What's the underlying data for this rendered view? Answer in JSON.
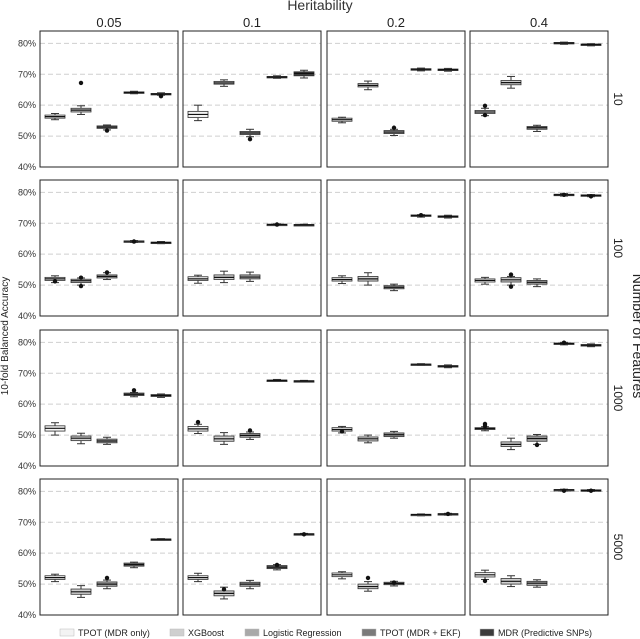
{
  "chart_data": {
    "type": "box",
    "title": "Heritability",
    "ylabel": "10-fold Balanced Accuracy",
    "row_axis_label": "Number of Features",
    "columns": [
      "0.05",
      "0.1",
      "0.2",
      "0.4"
    ],
    "rows": [
      "10",
      "100",
      "1000",
      "5000"
    ],
    "yticks": [
      "40%",
      "50%",
      "60%",
      "70%",
      "80%"
    ],
    "ylim": [
      0.4,
      0.84
    ],
    "grid": "horizontal dashed",
    "legend_position": "bottom",
    "methods": [
      {
        "name": "TPOT (MDR only)",
        "color": "#f3f3f3"
      },
      {
        "name": "XGBoost",
        "color": "#cfcfcf"
      },
      {
        "name": "Logistic Regression",
        "color": "#a9a9a9"
      },
      {
        "name": "TPOT (MDR + EKF)",
        "color": "#7a7a7a"
      },
      {
        "name": "MDR (Predictive SNPs)",
        "color": "#3c3c3c"
      }
    ],
    "panels": [
      {
        "row": "10",
        "col": "0.05",
        "boxes": [
          {
            "q1": 0.558,
            "med": 0.563,
            "q3": 0.568,
            "lo": 0.553,
            "hi": 0.573,
            "out": []
          },
          {
            "q1": 0.578,
            "med": 0.584,
            "q3": 0.59,
            "lo": 0.57,
            "hi": 0.598,
            "out": [
              0.672
            ]
          },
          {
            "q1": 0.525,
            "med": 0.529,
            "q3": 0.533,
            "lo": 0.52,
            "hi": 0.536,
            "out": [
              0.518
            ]
          },
          {
            "q1": 0.639,
            "med": 0.641,
            "q3": 0.643,
            "lo": 0.637,
            "hi": 0.645,
            "out": []
          },
          {
            "q1": 0.634,
            "med": 0.636,
            "q3": 0.638,
            "lo": 0.632,
            "hi": 0.64,
            "out": [
              0.629
            ]
          }
        ]
      },
      {
        "row": "10",
        "col": "0.1",
        "boxes": [
          {
            "q1": 0.56,
            "med": 0.57,
            "q3": 0.58,
            "lo": 0.55,
            "hi": 0.6,
            "out": []
          },
          {
            "q1": 0.668,
            "med": 0.672,
            "q3": 0.677,
            "lo": 0.661,
            "hi": 0.682,
            "out": []
          },
          {
            "q1": 0.505,
            "med": 0.51,
            "q3": 0.515,
            "lo": 0.498,
            "hi": 0.522,
            "out": [
              0.49
            ]
          },
          {
            "q1": 0.689,
            "med": 0.691,
            "q3": 0.693,
            "lo": 0.687,
            "hi": 0.695,
            "out": []
          },
          {
            "q1": 0.695,
            "med": 0.703,
            "q3": 0.708,
            "lo": 0.688,
            "hi": 0.713,
            "out": []
          }
        ]
      },
      {
        "row": "10",
        "col": "0.2",
        "boxes": [
          {
            "q1": 0.548,
            "med": 0.553,
            "q3": 0.558,
            "lo": 0.543,
            "hi": 0.561,
            "out": []
          },
          {
            "q1": 0.659,
            "med": 0.664,
            "q3": 0.67,
            "lo": 0.65,
            "hi": 0.678,
            "out": []
          },
          {
            "q1": 0.508,
            "med": 0.513,
            "q3": 0.518,
            "lo": 0.502,
            "hi": 0.522,
            "out": [
              0.527
            ]
          },
          {
            "q1": 0.713,
            "med": 0.716,
            "q3": 0.718,
            "lo": 0.711,
            "hi": 0.72,
            "out": []
          },
          {
            "q1": 0.712,
            "med": 0.715,
            "q3": 0.717,
            "lo": 0.71,
            "hi": 0.719,
            "out": []
          }
        ]
      },
      {
        "row": "10",
        "col": "0.4",
        "boxes": [
          {
            "q1": 0.573,
            "med": 0.578,
            "q3": 0.583,
            "lo": 0.566,
            "hi": 0.59,
            "out": [
              0.598,
              0.568
            ]
          },
          {
            "q1": 0.666,
            "med": 0.673,
            "q3": 0.68,
            "lo": 0.655,
            "hi": 0.693,
            "out": []
          },
          {
            "q1": 0.522,
            "med": 0.527,
            "q3": 0.531,
            "lo": 0.515,
            "hi": 0.535,
            "out": []
          },
          {
            "q1": 0.799,
            "med": 0.801,
            "q3": 0.803,
            "lo": 0.797,
            "hi": 0.804,
            "out": []
          },
          {
            "q1": 0.794,
            "med": 0.796,
            "q3": 0.798,
            "lo": 0.792,
            "hi": 0.799,
            "out": []
          }
        ]
      },
      {
        "row": "100",
        "col": "0.05",
        "boxes": [
          {
            "q1": 0.515,
            "med": 0.52,
            "q3": 0.525,
            "lo": 0.508,
            "hi": 0.53,
            "out": [
              0.512
            ]
          },
          {
            "q1": 0.508,
            "med": 0.514,
            "q3": 0.519,
            "lo": 0.5,
            "hi": 0.523,
            "out": [
              0.524,
              0.497
            ]
          },
          {
            "q1": 0.523,
            "med": 0.528,
            "q3": 0.533,
            "lo": 0.518,
            "hi": 0.54,
            "out": [
              0.541
            ]
          },
          {
            "q1": 0.64,
            "med": 0.642,
            "q3": 0.643,
            "lo": 0.638,
            "hi": 0.644,
            "out": [
              0.641
            ]
          },
          {
            "q1": 0.636,
            "med": 0.638,
            "q3": 0.639,
            "lo": 0.634,
            "hi": 0.641,
            "out": []
          }
        ]
      },
      {
        "row": "100",
        "col": "0.1",
        "boxes": [
          {
            "q1": 0.515,
            "med": 0.52,
            "q3": 0.527,
            "lo": 0.506,
            "hi": 0.532,
            "out": []
          },
          {
            "q1": 0.518,
            "med": 0.525,
            "q3": 0.533,
            "lo": 0.508,
            "hi": 0.545,
            "out": []
          },
          {
            "q1": 0.52,
            "med": 0.526,
            "q3": 0.533,
            "lo": 0.512,
            "hi": 0.542,
            "out": []
          },
          {
            "q1": 0.695,
            "med": 0.696,
            "q3": 0.697,
            "lo": 0.694,
            "hi": 0.698,
            "out": [
              0.696
            ]
          },
          {
            "q1": 0.694,
            "med": 0.695,
            "q3": 0.696,
            "lo": 0.693,
            "hi": 0.697,
            "out": []
          }
        ]
      },
      {
        "row": "100",
        "col": "0.2",
        "boxes": [
          {
            "q1": 0.513,
            "med": 0.518,
            "q3": 0.524,
            "lo": 0.505,
            "hi": 0.53,
            "out": []
          },
          {
            "q1": 0.513,
            "med": 0.52,
            "q3": 0.528,
            "lo": 0.5,
            "hi": 0.54,
            "out": []
          },
          {
            "q1": 0.488,
            "med": 0.493,
            "q3": 0.498,
            "lo": 0.482,
            "hi": 0.503,
            "out": []
          },
          {
            "q1": 0.723,
            "med": 0.725,
            "q3": 0.727,
            "lo": 0.72,
            "hi": 0.728,
            "out": [
              0.726
            ]
          },
          {
            "q1": 0.719,
            "med": 0.722,
            "q3": 0.724,
            "lo": 0.717,
            "hi": 0.726,
            "out": []
          }
        ]
      },
      {
        "row": "100",
        "col": "0.4",
        "boxes": [
          {
            "q1": 0.51,
            "med": 0.515,
            "q3": 0.52,
            "lo": 0.503,
            "hi": 0.525,
            "out": []
          },
          {
            "q1": 0.51,
            "med": 0.517,
            "q3": 0.524,
            "lo": 0.5,
            "hi": 0.528,
            "out": [
              0.534,
              0.495
            ]
          },
          {
            "q1": 0.503,
            "med": 0.509,
            "q3": 0.515,
            "lo": 0.495,
            "hi": 0.52,
            "out": []
          },
          {
            "q1": 0.79,
            "med": 0.792,
            "q3": 0.794,
            "lo": 0.788,
            "hi": 0.796,
            "out": [
              0.792
            ]
          },
          {
            "q1": 0.788,
            "med": 0.79,
            "q3": 0.792,
            "lo": 0.786,
            "hi": 0.793,
            "out": [
              0.787
            ]
          }
        ]
      },
      {
        "row": "1000",
        "col": "0.05",
        "boxes": [
          {
            "q1": 0.513,
            "med": 0.522,
            "q3": 0.53,
            "lo": 0.5,
            "hi": 0.54,
            "out": []
          },
          {
            "q1": 0.482,
            "med": 0.49,
            "q3": 0.497,
            "lo": 0.472,
            "hi": 0.506,
            "out": []
          },
          {
            "q1": 0.475,
            "med": 0.481,
            "q3": 0.487,
            "lo": 0.47,
            "hi": 0.493,
            "out": []
          },
          {
            "q1": 0.628,
            "med": 0.632,
            "q3": 0.636,
            "lo": 0.624,
            "hi": 0.638,
            "out": [
              0.645
            ]
          },
          {
            "q1": 0.625,
            "med": 0.628,
            "q3": 0.631,
            "lo": 0.622,
            "hi": 0.633,
            "out": []
          }
        ]
      },
      {
        "row": "1000",
        "col": "0.1",
        "boxes": [
          {
            "q1": 0.513,
            "med": 0.52,
            "q3": 0.528,
            "lo": 0.505,
            "hi": 0.535,
            "out": [
              0.542
            ]
          },
          {
            "q1": 0.48,
            "med": 0.488,
            "q3": 0.497,
            "lo": 0.47,
            "hi": 0.508,
            "out": []
          },
          {
            "q1": 0.493,
            "med": 0.499,
            "q3": 0.505,
            "lo": 0.486,
            "hi": 0.51,
            "out": [
              0.515
            ]
          },
          {
            "q1": 0.675,
            "med": 0.677,
            "q3": 0.678,
            "lo": 0.674,
            "hi": 0.68,
            "out": []
          },
          {
            "q1": 0.674,
            "med": 0.675,
            "q3": 0.676,
            "lo": 0.673,
            "hi": 0.677,
            "out": []
          }
        ]
      },
      {
        "row": "1000",
        "col": "0.2",
        "boxes": [
          {
            "q1": 0.513,
            "med": 0.518,
            "q3": 0.524,
            "lo": 0.507,
            "hi": 0.528,
            "out": [
              0.512
            ]
          },
          {
            "q1": 0.481,
            "med": 0.488,
            "q3": 0.494,
            "lo": 0.475,
            "hi": 0.5,
            "out": []
          },
          {
            "q1": 0.495,
            "med": 0.501,
            "q3": 0.507,
            "lo": 0.49,
            "hi": 0.512,
            "out": []
          },
          {
            "q1": 0.727,
            "med": 0.729,
            "q3": 0.73,
            "lo": 0.726,
            "hi": 0.731,
            "out": []
          },
          {
            "q1": 0.72,
            "med": 0.723,
            "q3": 0.725,
            "lo": 0.718,
            "hi": 0.727,
            "out": []
          }
        ]
      },
      {
        "row": "1000",
        "col": "0.4",
        "boxes": [
          {
            "q1": 0.518,
            "med": 0.521,
            "q3": 0.524,
            "lo": 0.514,
            "hi": 0.527,
            "out": [
              0.536,
              0.529
            ]
          },
          {
            "q1": 0.463,
            "med": 0.47,
            "q3": 0.478,
            "lo": 0.453,
            "hi": 0.49,
            "out": []
          },
          {
            "q1": 0.48,
            "med": 0.489,
            "q3": 0.497,
            "lo": 0.47,
            "hi": 0.502,
            "out": [
              0.468
            ]
          },
          {
            "q1": 0.794,
            "med": 0.796,
            "q3": 0.798,
            "lo": 0.792,
            "hi": 0.8,
            "out": [
              0.799
            ]
          },
          {
            "q1": 0.788,
            "med": 0.791,
            "q3": 0.793,
            "lo": 0.786,
            "hi": 0.795,
            "out": []
          }
        ]
      },
      {
        "row": "5000",
        "col": "0.05",
        "boxes": [
          {
            "q1": 0.515,
            "med": 0.521,
            "q3": 0.527,
            "lo": 0.508,
            "hi": 0.532,
            "out": []
          },
          {
            "q1": 0.467,
            "med": 0.475,
            "q3": 0.484,
            "lo": 0.457,
            "hi": 0.495,
            "out": []
          },
          {
            "q1": 0.493,
            "med": 0.5,
            "q3": 0.507,
            "lo": 0.485,
            "hi": 0.513,
            "out": [
              0.52
            ]
          },
          {
            "q1": 0.558,
            "med": 0.563,
            "q3": 0.568,
            "lo": 0.553,
            "hi": 0.571,
            "out": []
          },
          {
            "q1": 0.644,
            "med": 0.645,
            "q3": 0.646,
            "lo": 0.643,
            "hi": 0.647,
            "out": []
          }
        ]
      },
      {
        "row": "5000",
        "col": "0.1",
        "boxes": [
          {
            "q1": 0.515,
            "med": 0.521,
            "q3": 0.527,
            "lo": 0.508,
            "hi": 0.535,
            "out": []
          },
          {
            "q1": 0.462,
            "med": 0.47,
            "q3": 0.478,
            "lo": 0.452,
            "hi": 0.49,
            "out": [
              0.483
            ]
          },
          {
            "q1": 0.493,
            "med": 0.5,
            "q3": 0.506,
            "lo": 0.485,
            "hi": 0.512,
            "out": []
          },
          {
            "q1": 0.55,
            "med": 0.555,
            "q3": 0.56,
            "lo": 0.546,
            "hi": 0.563,
            "out": [
              0.562
            ]
          },
          {
            "q1": 0.661,
            "med": 0.662,
            "q3": 0.663,
            "lo": 0.66,
            "hi": 0.664,
            "out": [
              0.661
            ]
          }
        ]
      },
      {
        "row": "5000",
        "col": "0.2",
        "boxes": [
          {
            "q1": 0.524,
            "med": 0.53,
            "q3": 0.536,
            "lo": 0.517,
            "hi": 0.54,
            "out": []
          },
          {
            "q1": 0.485,
            "med": 0.492,
            "q3": 0.5,
            "lo": 0.477,
            "hi": 0.508,
            "out": [
              0.52
            ]
          },
          {
            "q1": 0.498,
            "med": 0.502,
            "q3": 0.506,
            "lo": 0.494,
            "hi": 0.509,
            "out": [
              0.505
            ]
          },
          {
            "q1": 0.723,
            "med": 0.725,
            "q3": 0.726,
            "lo": 0.721,
            "hi": 0.727,
            "out": []
          },
          {
            "q1": 0.725,
            "med": 0.727,
            "q3": 0.728,
            "lo": 0.723,
            "hi": 0.729,
            "out": [
              0.727
            ]
          }
        ]
      },
      {
        "row": "5000",
        "col": "0.4",
        "boxes": [
          {
            "q1": 0.523,
            "med": 0.53,
            "q3": 0.537,
            "lo": 0.515,
            "hi": 0.545,
            "out": [
              0.51
            ]
          },
          {
            "q1": 0.5,
            "med": 0.509,
            "q3": 0.518,
            "lo": 0.492,
            "hi": 0.527,
            "out": []
          },
          {
            "q1": 0.496,
            "med": 0.503,
            "q3": 0.509,
            "lo": 0.49,
            "hi": 0.514,
            "out": []
          },
          {
            "q1": 0.803,
            "med": 0.805,
            "q3": 0.806,
            "lo": 0.801,
            "hi": 0.807,
            "out": [
              0.802
            ]
          },
          {
            "q1": 0.802,
            "med": 0.803,
            "q3": 0.805,
            "lo": 0.8,
            "hi": 0.806,
            "out": [
              0.802
            ]
          }
        ]
      }
    ]
  }
}
